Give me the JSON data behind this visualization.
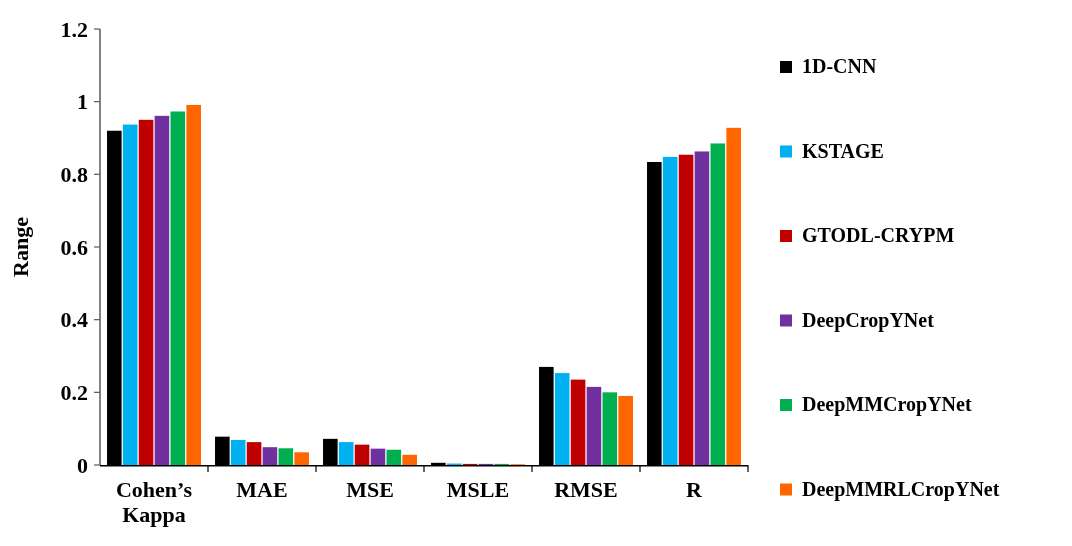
{
  "chart_data": {
    "type": "bar",
    "ylabel": "Range",
    "categories": [
      "Cohen’s Kappa",
      "MAE",
      "MSE",
      "MSLE",
      "RMSE",
      "R"
    ],
    "series": [
      {
        "name": "1D-CNN",
        "color": "#000000",
        "values": [
          0.92,
          0.078,
          0.072,
          0.006,
          0.27,
          0.834
        ]
      },
      {
        "name": "KSTAGE",
        "color": "#00b0f0",
        "values": [
          0.937,
          0.069,
          0.063,
          0.004,
          0.253,
          0.848
        ]
      },
      {
        "name": "GTODL-CRYPM",
        "color": "#c00000",
        "values": [
          0.95,
          0.063,
          0.056,
          0.003,
          0.235,
          0.854
        ]
      },
      {
        "name": "DeepCropYNet",
        "color": "#7030a0",
        "values": [
          0.961,
          0.049,
          0.045,
          0.003,
          0.215,
          0.863
        ]
      },
      {
        "name": "DeepMMCropYNet",
        "color": "#00b050",
        "values": [
          0.973,
          0.046,
          0.042,
          0.003,
          0.2,
          0.885
        ]
      },
      {
        "name": "DeepMMRLCropYNet",
        "color": "#ff6600",
        "values": [
          0.991,
          0.035,
          0.028,
          0.002,
          0.19,
          0.928
        ]
      }
    ],
    "ylim": [
      0,
      1.2
    ],
    "yticks": [
      0,
      0.2,
      0.4,
      0.6,
      0.8,
      1,
      1.2
    ],
    "grid": false,
    "legend": "right"
  }
}
